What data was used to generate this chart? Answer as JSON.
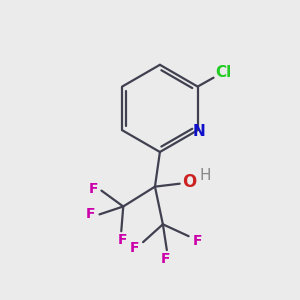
{
  "background_color": "#ebebeb",
  "bond_color": "#404050",
  "N_label": "N",
  "N_color": "#1010cc",
  "Cl_label": "Cl",
  "Cl_color": "#22cc22",
  "O_label": "O",
  "O_color": "#cc2222",
  "H_label": "H",
  "H_color": "#888888",
  "F_label": "F",
  "F_color": "#cc00aa",
  "bond_width": 1.6,
  "figsize": [
    3.0,
    3.0
  ],
  "dpi": 100
}
